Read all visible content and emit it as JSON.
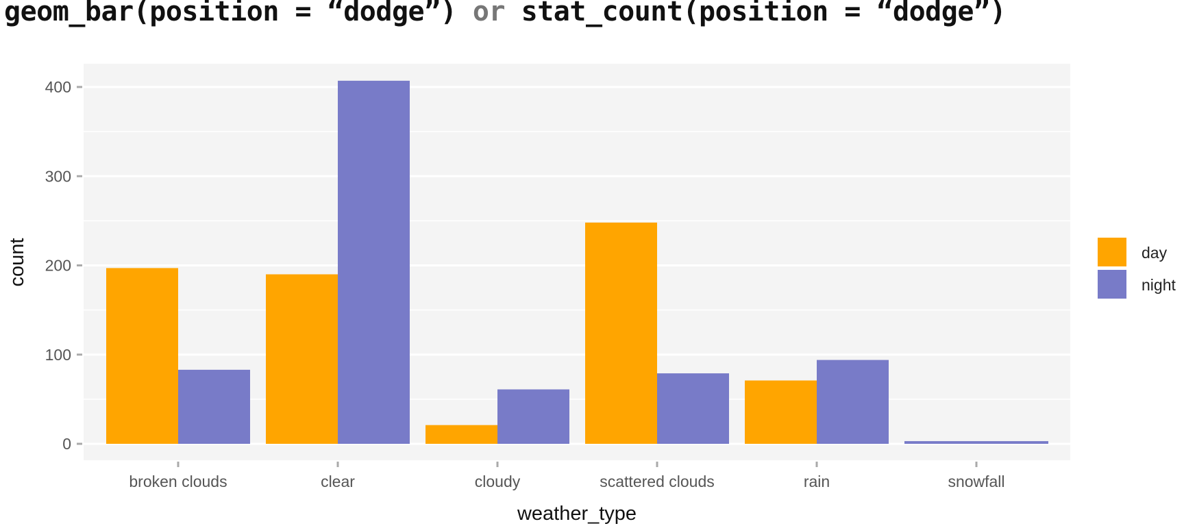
{
  "title": {
    "part1": "geom_bar(position = “dodge”)",
    "conj": " or ",
    "part2": "stat_count(position = “dodge”)"
  },
  "chart_data": {
    "type": "bar",
    "categories": [
      "broken clouds",
      "clear",
      "cloudy",
      "scattered clouds",
      "rain",
      "snowfall"
    ],
    "series": [
      {
        "name": "day",
        "color": "#FFA500",
        "values": [
          197,
          190,
          21,
          248,
          71,
          null
        ]
      },
      {
        "name": "night",
        "color": "#787BC8",
        "values": [
          83,
          407,
          61,
          79,
          94,
          3
        ]
      }
    ],
    "xlabel": "weather_type",
    "ylabel": "count",
    "ylim": [
      0,
      420
    ],
    "yticks": [
      0,
      100,
      200,
      300,
      400
    ],
    "grid": true,
    "legend_position": "right"
  }
}
